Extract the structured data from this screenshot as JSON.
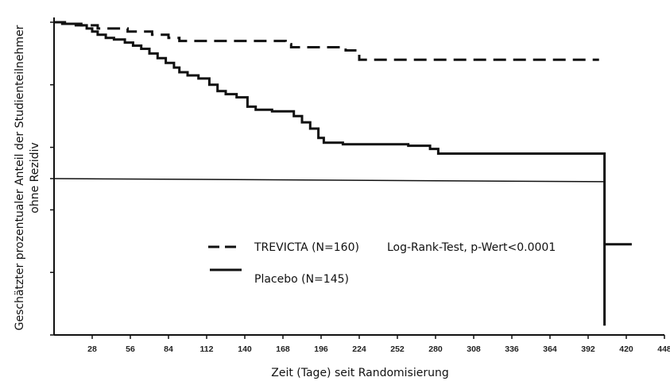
{
  "chart_data": {
    "type": "line",
    "title": "",
    "xlabel": "Zeit (Tage) seit Randomisierung",
    "ylabel": "Geschätzter prozentualer Anteil der Studienteilnehmer ohne Rezidiv",
    "xlim": [
      0,
      448
    ],
    "ylim": [
      0,
      100
    ],
    "x_ticks": [
      28,
      56,
      84,
      112,
      140,
      168,
      196,
      224,
      252,
      280,
      308,
      336,
      364,
      392,
      420,
      448
    ],
    "x_tick_labels": [
      "28",
      "56",
      "84",
      "112",
      "140",
      "168",
      "196",
      "224",
      "252",
      "280",
      "308",
      "336",
      "364",
      "392",
      "420",
      "448"
    ],
    "y_ticks": [
      0,
      20,
      40,
      50,
      60,
      80,
      100
    ],
    "grid": false,
    "legend_position": "bottom-left",
    "annotation": "Log-Rank-Test, p-Wert<0.0001",
    "series": [
      {
        "name": "TREVICTA (N=160)",
        "style": "dashed",
        "color": "#111111",
        "points": [
          [
            0,
            100
          ],
          [
            8,
            100
          ],
          [
            8,
            99.5
          ],
          [
            20,
            99.5
          ],
          [
            20,
            99
          ],
          [
            32,
            99
          ],
          [
            32,
            98
          ],
          [
            54,
            98
          ],
          [
            54,
            97
          ],
          [
            72,
            97
          ],
          [
            72,
            96
          ],
          [
            84,
            96
          ],
          [
            84,
            95
          ],
          [
            92,
            95
          ],
          [
            92,
            94
          ],
          [
            170,
            94
          ],
          [
            170,
            93
          ],
          [
            174,
            93
          ],
          [
            174,
            92
          ],
          [
            214,
            92
          ],
          [
            214,
            91
          ],
          [
            224,
            91
          ],
          [
            224,
            88
          ],
          [
            400,
            88
          ]
        ]
      },
      {
        "name": "Placebo (N=145)",
        "style": "solid",
        "color": "#111111",
        "points": [
          [
            0,
            100
          ],
          [
            6,
            100
          ],
          [
            6,
            99.5
          ],
          [
            16,
            99.5
          ],
          [
            16,
            99
          ],
          [
            24,
            99
          ],
          [
            24,
            98
          ],
          [
            28,
            98
          ],
          [
            28,
            97
          ],
          [
            32,
            97
          ],
          [
            32,
            96
          ],
          [
            38,
            96
          ],
          [
            38,
            95
          ],
          [
            44,
            95
          ],
          [
            44,
            94.5
          ],
          [
            52,
            94.5
          ],
          [
            52,
            93.5
          ],
          [
            58,
            93.5
          ],
          [
            58,
            92.5
          ],
          [
            64,
            92.5
          ],
          [
            64,
            91.5
          ],
          [
            70,
            91.5
          ],
          [
            70,
            90
          ],
          [
            76,
            90
          ],
          [
            76,
            88.5
          ],
          [
            82,
            88.5
          ],
          [
            82,
            87
          ],
          [
            88,
            87
          ],
          [
            88,
            85.5
          ],
          [
            92,
            85.5
          ],
          [
            92,
            84
          ],
          [
            98,
            84
          ],
          [
            98,
            83
          ],
          [
            106,
            83
          ],
          [
            106,
            82
          ],
          [
            114,
            82
          ],
          [
            114,
            80
          ],
          [
            120,
            80
          ],
          [
            120,
            78
          ],
          [
            126,
            78
          ],
          [
            126,
            77
          ],
          [
            134,
            77
          ],
          [
            134,
            76
          ],
          [
            142,
            76
          ],
          [
            142,
            73
          ],
          [
            148,
            73
          ],
          [
            148,
            72
          ],
          [
            160,
            72
          ],
          [
            160,
            71.5
          ],
          [
            176,
            71.5
          ],
          [
            176,
            70
          ],
          [
            182,
            70
          ],
          [
            182,
            68
          ],
          [
            188,
            68
          ],
          [
            188,
            66
          ],
          [
            194,
            66
          ],
          [
            194,
            63
          ],
          [
            198,
            63
          ],
          [
            198,
            61.5
          ],
          [
            212,
            61.5
          ],
          [
            212,
            61
          ],
          [
            260,
            61
          ],
          [
            260,
            60.5
          ],
          [
            276,
            60.5
          ],
          [
            276,
            59.5
          ],
          [
            282,
            59.5
          ],
          [
            282,
            58
          ],
          [
            404,
            58
          ],
          [
            404,
            3
          ],
          [
            404,
            29
          ],
          [
            424,
            29
          ]
        ]
      },
      {
        "name": "",
        "style": "solid-thin",
        "color": "#111111",
        "points": [
          [
            0,
            50
          ],
          [
            404,
            49
          ]
        ]
      }
    ]
  }
}
